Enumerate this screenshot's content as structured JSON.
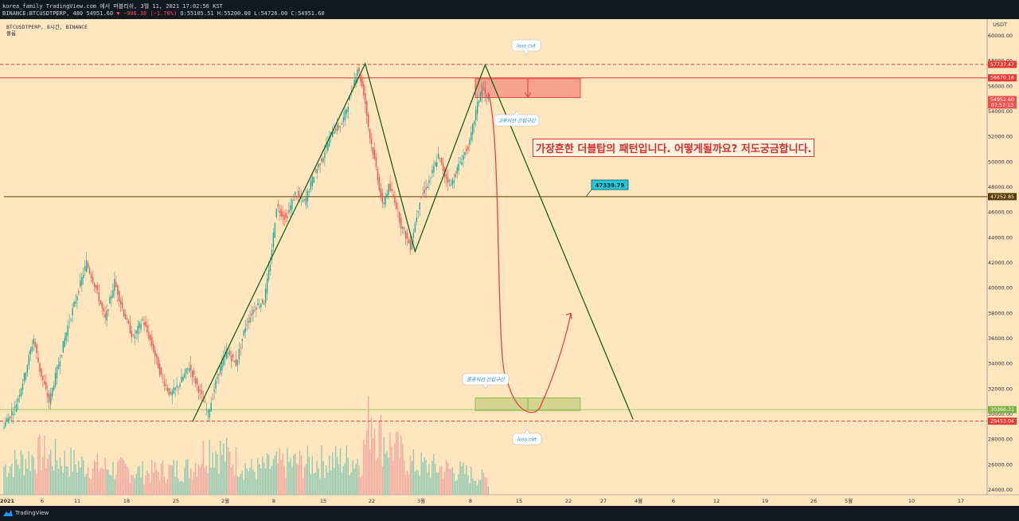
{
  "header": {
    "line1": "korea_family TradingView.com 에서 퍼블리쉬, 3월 11, 2021 17:02:56 KST",
    "symbol_line": "BINANCE:BTCUSDTPERP, 480",
    "last": "54951.60",
    "change": "▼ −996.38 (−1.78%)",
    "o": "O:55105.51",
    "h": "H:55200.00",
    "l": "L:54726.00",
    "c": "C:54951.60"
  },
  "legend": {
    "title": "BTCUSDTPERP, 8시간, BINANCE",
    "volume_label": "볼륨"
  },
  "annotation_text": "가장흔한 더블탑의 패턴입니다. 어떻게될까요? 저도궁금합니다.",
  "callouts": {
    "loss_cut_top": "loss cut",
    "loss_cut_bottom": "loss cut",
    "entry_top": "고포지션 진입구간",
    "entry_bottom": "롱포지션 진입구간",
    "price_tag": "47339.79"
  },
  "footer": {
    "brand": "TradingView"
  },
  "colors": {
    "background": "#ffe6bf",
    "up_candle": "#26a69a",
    "down_candle": "#ef5350",
    "pattern_line": "#1b5e20",
    "projection": "#e53935",
    "support_line": "#5d3a00"
  },
  "chart_data": {
    "type": "candlestick",
    "currency": "USDT",
    "y_ticks": [
      24000,
      26000,
      28000,
      30000,
      32000,
      34000,
      36000,
      38000,
      40000,
      42000,
      44000,
      46000,
      48000,
      50000,
      52000,
      54000,
      56000,
      58000,
      60000
    ],
    "ylim": [
      23500,
      61200
    ],
    "x_ticks": [
      "2021",
      "6",
      "11",
      "18",
      "25",
      "2월",
      "8",
      "15",
      "22",
      "3월",
      "8",
      "15",
      "22",
      "27",
      "4월",
      "6",
      "12",
      "19",
      "26",
      "5월",
      "10",
      "17"
    ],
    "price_labels": [
      {
        "value": 57737.47,
        "text": "57737.47",
        "color": "#e53935"
      },
      {
        "value": 56670.16,
        "text": "56670.16",
        "color": "#e53935"
      },
      {
        "value": 54951.6,
        "text": "54951.60",
        "sub": "07:57:13",
        "color": "#ef5350"
      },
      {
        "value": 47252.85,
        "text": "47252.85",
        "color": "#5d3a00"
      },
      {
        "value": 30366.31,
        "text": "30366.31",
        "color": "#7cb342"
      },
      {
        "value": 29453.04,
        "text": "29453.04",
        "color": "#e53935"
      }
    ],
    "levels": {
      "resistance_dashed": 57737.47,
      "resistance_solid": 56670.16,
      "support_solid": 47252.85,
      "support_green": 30366.31,
      "support_dashed": 29453.04
    },
    "price_path": [
      [
        0,
        29000
      ],
      [
        8,
        30500
      ],
      [
        14,
        33000
      ],
      [
        20,
        36000
      ],
      [
        24,
        33500
      ],
      [
        30,
        31000
      ],
      [
        36,
        34000
      ],
      [
        42,
        37000
      ],
      [
        48,
        39500
      ],
      [
        54,
        42000
      ],
      [
        60,
        40000
      ],
      [
        66,
        37500
      ],
      [
        72,
        40500
      ],
      [
        78,
        38000
      ],
      [
        84,
        36000
      ],
      [
        90,
        37500
      ],
      [
        96,
        35500
      ],
      [
        102,
        33000
      ],
      [
        108,
        31500
      ],
      [
        114,
        32500
      ],
      [
        120,
        33800
      ],
      [
        126,
        32000
      ],
      [
        132,
        30000
      ],
      [
        138,
        33000
      ],
      [
        144,
        35000
      ],
      [
        150,
        34000
      ],
      [
        156,
        37000
      ],
      [
        162,
        38500
      ],
      [
        168,
        39000
      ],
      [
        172,
        42000
      ],
      [
        176,
        46500
      ],
      [
        182,
        45500
      ],
      [
        188,
        47500
      ],
      [
        194,
        46800
      ],
      [
        200,
        49000
      ],
      [
        206,
        50500
      ],
      [
        212,
        52500
      ],
      [
        218,
        53000
      ],
      [
        224,
        55500
      ],
      [
        228,
        57500
      ],
      [
        232,
        55500
      ],
      [
        236,
        52000
      ],
      [
        240,
        49500
      ],
      [
        244,
        46500
      ],
      [
        248,
        48000
      ],
      [
        252,
        47000
      ],
      [
        256,
        45000
      ],
      [
        262,
        43300
      ],
      [
        268,
        47000
      ],
      [
        274,
        48500
      ],
      [
        280,
        50500
      ],
      [
        284,
        49000
      ],
      [
        288,
        48200
      ],
      [
        294,
        50000
      ],
      [
        300,
        51500
      ],
      [
        304,
        54000
      ],
      [
        308,
        56000
      ],
      [
        311,
        55000
      ]
    ],
    "volume": [
      {
        "i": 0,
        "v": 0.28
      },
      {
        "i": 24,
        "v": 0.4
      },
      {
        "i": 48,
        "v": 0.3
      },
      {
        "i": 90,
        "v": 0.22
      },
      {
        "i": 120,
        "v": 0.26
      },
      {
        "i": 132,
        "v": 0.48
      },
      {
        "i": 160,
        "v": 0.24
      },
      {
        "i": 176,
        "v": 0.3
      },
      {
        "i": 230,
        "v": 0.35
      },
      {
        "i": 236,
        "v": 0.85
      },
      {
        "i": 240,
        "v": 0.6
      },
      {
        "i": 262,
        "v": 0.3
      },
      {
        "i": 290,
        "v": 0.24
      },
      {
        "i": 311,
        "v": 0.15
      }
    ],
    "pattern_points": [
      {
        "i": 121,
        "price": 29400
      },
      {
        "i": 232,
        "price": 57800
      },
      {
        "i": 264,
        "price": 42900
      },
      {
        "i": 309,
        "price": 57700
      },
      {
        "i": 404,
        "price": 29600
      }
    ],
    "projection_curve": {
      "start_i": 311,
      "start_price": 55500,
      "bottom_i": 341,
      "bottom_price": 30500,
      "end_i": 364,
      "end_price": 38000
    }
  }
}
